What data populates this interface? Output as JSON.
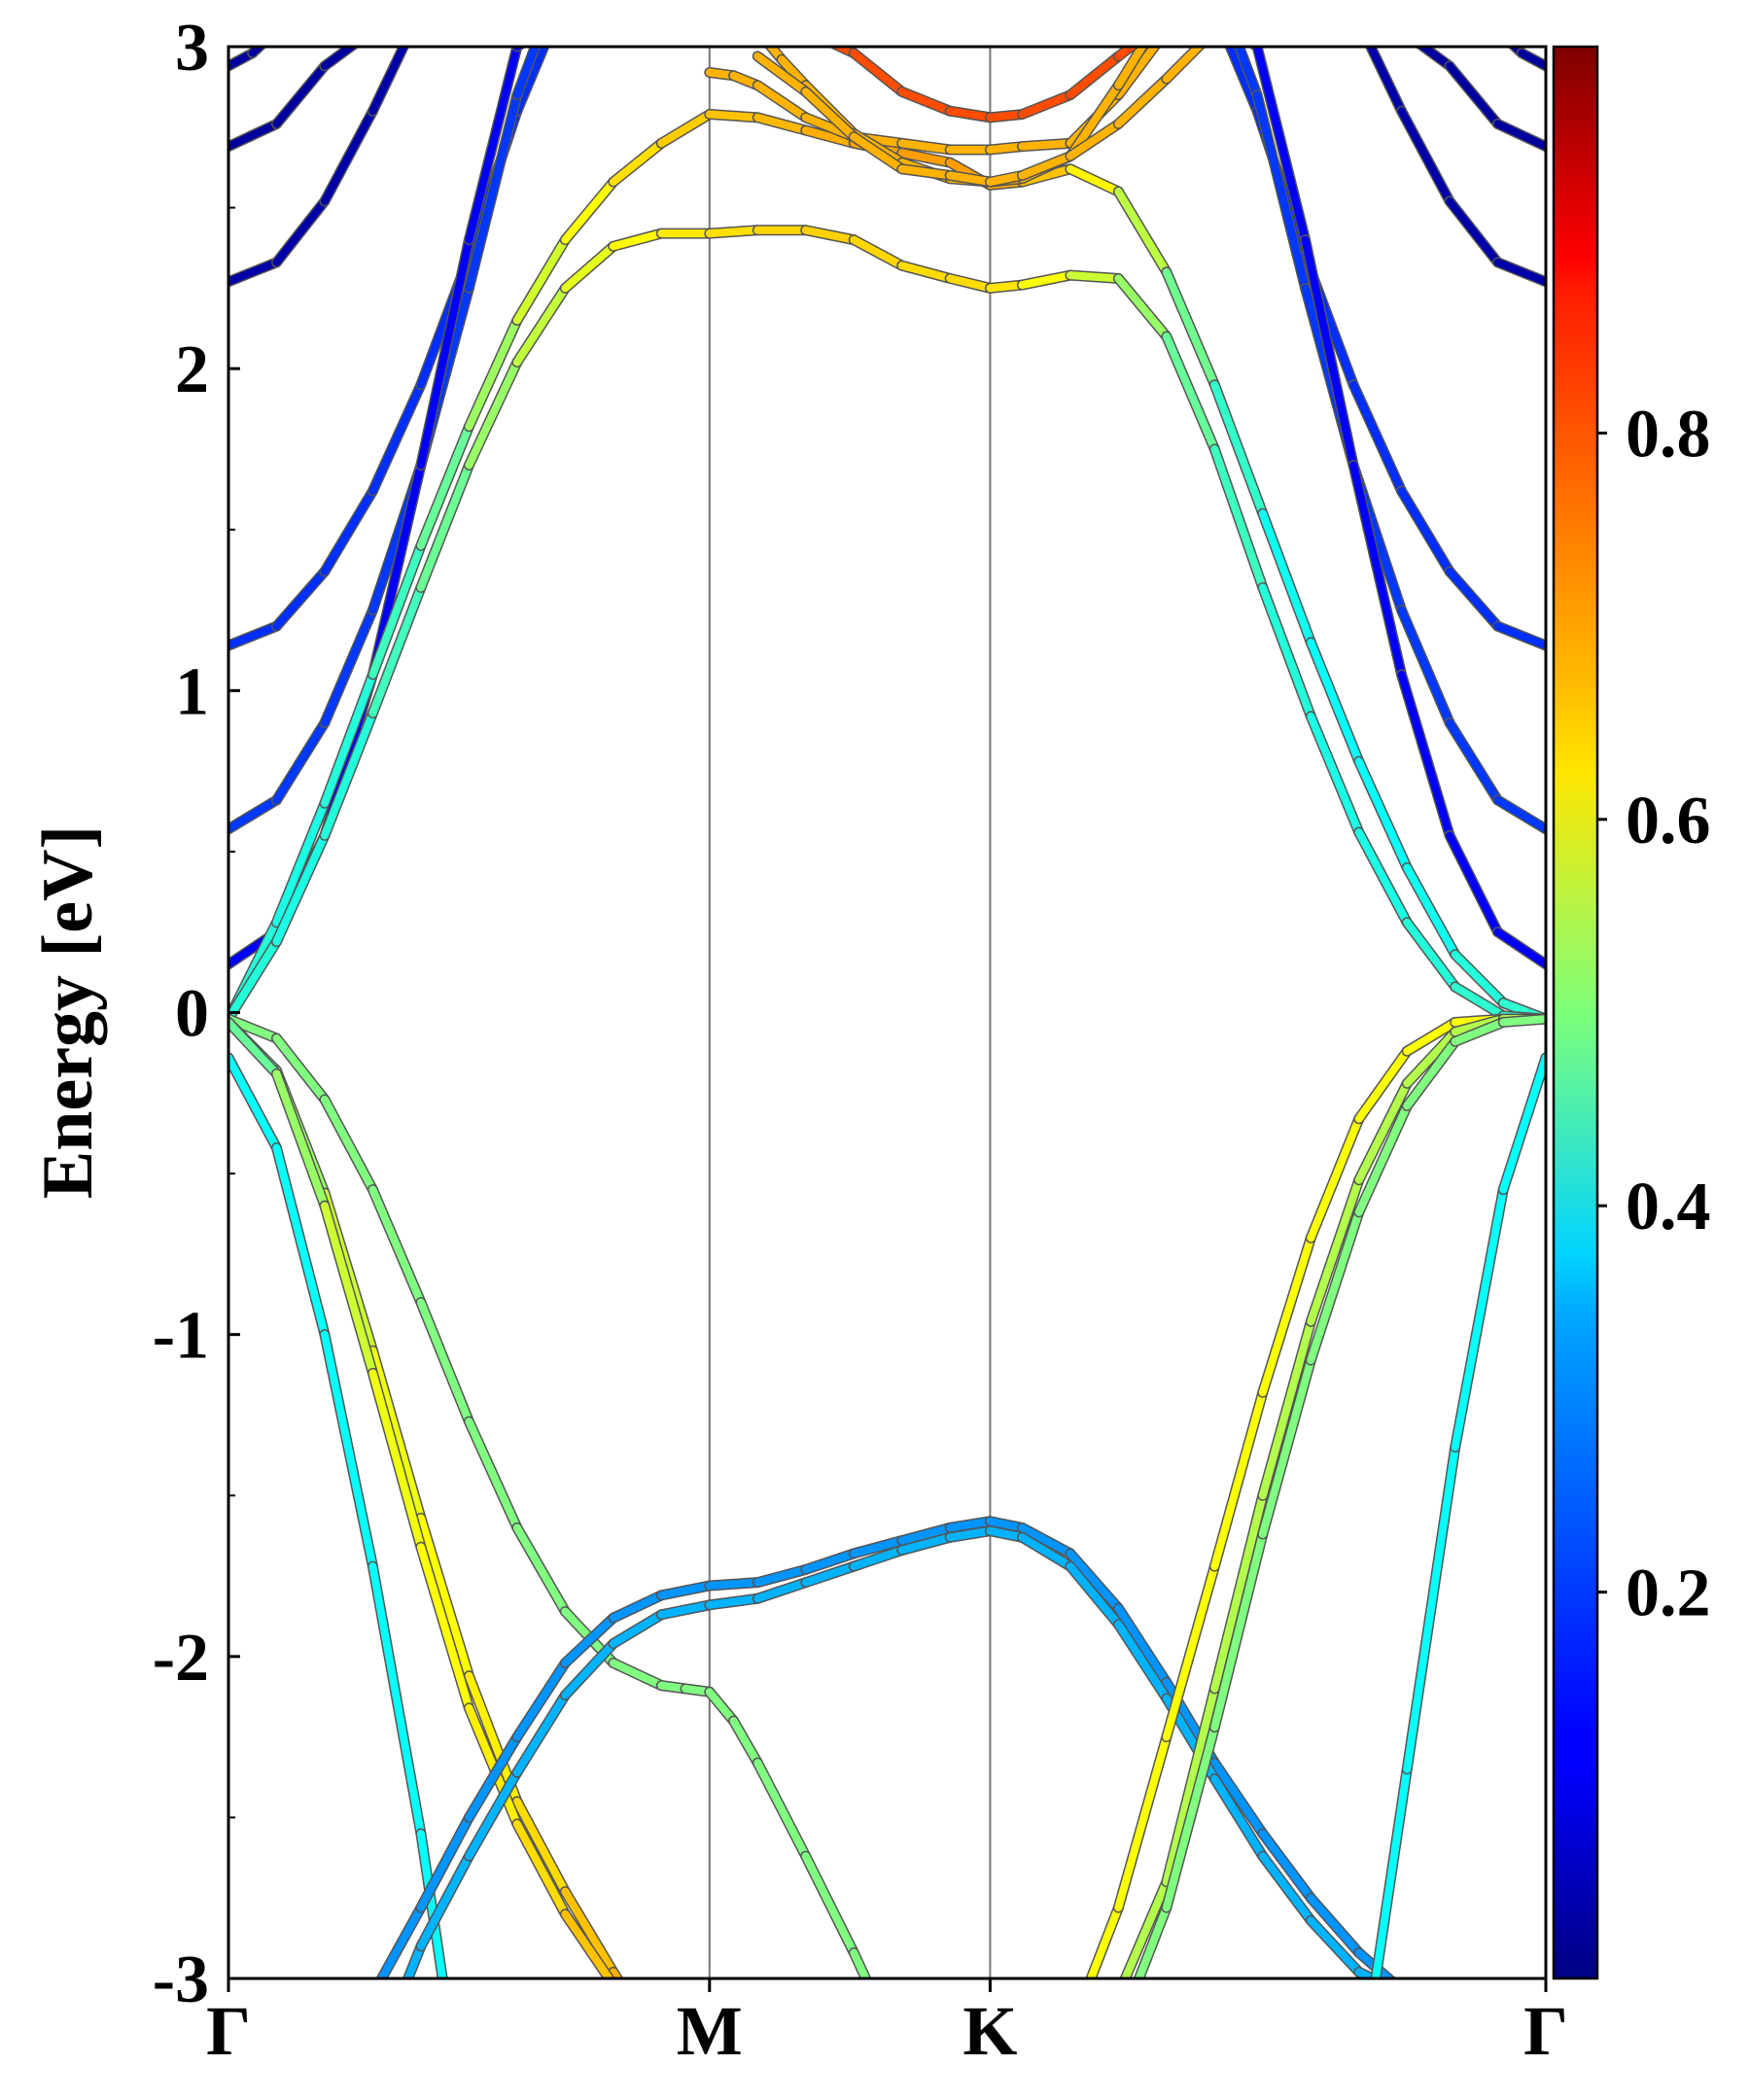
{
  "chart_data": {
    "type": "line",
    "title": "",
    "ylabel": "Energy [eV]",
    "xlabel": "",
    "ylim": [
      -3,
      3
    ],
    "yticks": [
      -3,
      -2,
      -1,
      0,
      1,
      2,
      3
    ],
    "ytick_labels": [
      "-3",
      "-2",
      "-1",
      "0",
      "1",
      "2",
      "3"
    ],
    "kpath_labels": [
      "Γ",
      "M",
      "K",
      "Γ"
    ],
    "kpath_positions": [
      0,
      1,
      1.5833,
      2.7385
    ],
    "colorbar": {
      "colormap": "jet",
      "range": [
        0,
        1
      ],
      "ticks": [
        0.2,
        0.4,
        0.6,
        0.8
      ],
      "tick_labels": [
        "0.2",
        "0.4",
        "0.6",
        "0.8"
      ]
    },
    "grid": false,
    "bands": [
      {
        "name": "cond-dark-1",
        "weight": 0.03,
        "x": [
          0,
          0.05,
          0.1,
          2.6385,
          2.6885,
          2.7385
        ],
        "y": [
          2.94,
          2.98,
          3.05,
          3.05,
          2.98,
          2.94
        ]
      },
      {
        "name": "cond-dark-2",
        "weight": 0.03,
        "x": [
          0,
          0.1,
          0.2,
          0.3,
          2.4385,
          2.5385,
          2.6385,
          2.7385
        ],
        "y": [
          2.69,
          2.76,
          2.94,
          3.05,
          3.05,
          2.94,
          2.76,
          2.69
        ]
      },
      {
        "name": "cond-dark-3",
        "weight": 0.04,
        "x": [
          0,
          0.1,
          0.2,
          0.3,
          0.38,
          2.3585,
          2.4385,
          2.5385,
          2.6385,
          2.7385
        ],
        "y": [
          2.27,
          2.33,
          2.52,
          2.8,
          3.05,
          3.05,
          2.8,
          2.52,
          2.33,
          2.27
        ]
      },
      {
        "name": "cond-blue-1",
        "weight": 0.17,
        "x": [
          0,
          0.1,
          0.2,
          0.3,
          0.4,
          0.5,
          0.6,
          0.67,
          2.0685,
          2.1385,
          2.2385,
          2.3385,
          2.4385,
          2.5385,
          2.6385,
          2.7385
        ],
        "y": [
          1.14,
          1.2,
          1.37,
          1.62,
          1.95,
          2.35,
          2.8,
          3.05,
          3.05,
          2.8,
          2.35,
          1.95,
          1.62,
          1.37,
          1.2,
          1.14
        ]
      },
      {
        "name": "cond-blue-2",
        "weight": 0.18,
        "x": [
          0,
          0.1,
          0.2,
          0.3,
          0.4,
          0.5,
          0.6,
          0.65,
          2.0885,
          2.1385,
          2.2385,
          2.3385,
          2.4385,
          2.5385,
          2.6385,
          2.7385
        ],
        "y": [
          0.57,
          0.66,
          0.9,
          1.25,
          1.7,
          2.25,
          2.85,
          3.05,
          3.05,
          2.85,
          2.25,
          1.7,
          1.25,
          0.9,
          0.66,
          0.57
        ]
      },
      {
        "name": "cond-blue-3",
        "weight": 0.12,
        "x": [
          0,
          0.1,
          0.2,
          0.3,
          0.4,
          0.5,
          0.6,
          0.65,
          2.0885,
          2.1385,
          2.2385,
          2.3385,
          2.4385,
          2.5385,
          2.6385,
          2.7385
        ],
        "y": [
          0.15,
          0.25,
          0.55,
          1.05,
          1.7,
          2.4,
          3.0,
          3.05,
          3.05,
          3.0,
          2.4,
          1.7,
          1.05,
          0.55,
          0.25,
          0.15
        ]
      },
      {
        "name": "cond-cone-1",
        "weight": 0.45,
        "x": [
          0,
          0.1,
          0.2,
          0.3,
          0.4,
          0.5,
          0.6,
          0.7,
          0.8,
          0.9,
          1.0,
          1.1,
          1.2,
          1.3,
          1.4,
          1.5,
          1.5833,
          1.65,
          1.75,
          1.85,
          1.95,
          2.05,
          2.15,
          2.25,
          2.35,
          2.45,
          2.55,
          2.65,
          2.7385
        ],
        "y": [
          -0.02,
          0.28,
          0.65,
          1.05,
          1.45,
          1.82,
          2.15,
          2.4,
          2.58,
          2.7,
          2.79,
          2.78,
          2.74,
          2.7,
          2.67,
          2.64,
          2.57,
          2.58,
          2.62,
          2.55,
          2.3,
          1.95,
          1.55,
          1.15,
          0.78,
          0.45,
          0.18,
          0.03,
          -0.02
        ],
        "weights": [
          0.42,
          0.4,
          0.4,
          0.42,
          0.45,
          0.5,
          0.56,
          0.6,
          0.64,
          0.67,
          0.68,
          0.69,
          0.7,
          0.71,
          0.72,
          0.72,
          0.72,
          0.7,
          0.67,
          0.6,
          0.52,
          0.45,
          0.4,
          0.38,
          0.38,
          0.38,
          0.4,
          0.42,
          0.42
        ]
      },
      {
        "name": "cond-cone-2",
        "weight": 0.55,
        "x": [
          0,
          0.1,
          0.2,
          0.3,
          0.4,
          0.5,
          0.6,
          0.7,
          0.8,
          0.9,
          1.0,
          1.1,
          1.2,
          1.3,
          1.4,
          1.5,
          1.5833,
          1.65,
          1.75,
          1.85,
          1.95,
          2.05,
          2.15,
          2.25,
          2.35,
          2.45,
          2.55,
          2.65,
          2.7385
        ],
        "y": [
          -0.02,
          0.22,
          0.55,
          0.93,
          1.32,
          1.7,
          2.02,
          2.25,
          2.38,
          2.42,
          2.42,
          2.43,
          2.43,
          2.4,
          2.32,
          2.28,
          2.25,
          2.26,
          2.29,
          2.28,
          2.1,
          1.75,
          1.32,
          0.92,
          0.56,
          0.28,
          0.08,
          -0.01,
          -0.02
        ],
        "weights": [
          0.42,
          0.4,
          0.4,
          0.42,
          0.46,
          0.5,
          0.55,
          0.58,
          0.62,
          0.64,
          0.65,
          0.66,
          0.67,
          0.67,
          0.66,
          0.66,
          0.66,
          0.64,
          0.6,
          0.55,
          0.5,
          0.45,
          0.42,
          0.4,
          0.4,
          0.4,
          0.42,
          0.42,
          0.42
        ]
      },
      {
        "name": "cond-orange-1",
        "weight": 0.7,
        "x": [
          1.0,
          1.05,
          1.1,
          1.2,
          1.3,
          1.4,
          1.5,
          1.5833,
          1.65,
          1.75,
          1.85,
          1.95
        ],
        "y": [
          2.92,
          2.91,
          2.88,
          2.78,
          2.72,
          2.7,
          2.68,
          2.68,
          2.69,
          2.7,
          2.85,
          3.05
        ]
      },
      {
        "name": "cond-orange-2",
        "weight": 0.7,
        "x": [
          1.1,
          1.15,
          1.2,
          1.3,
          1.4,
          1.5,
          1.5833,
          1.65,
          1.75,
          1.85,
          1.92
        ],
        "y": [
          3.05,
          2.96,
          2.88,
          2.73,
          2.64,
          2.59,
          2.58,
          2.59,
          2.66,
          2.88,
          3.05
        ]
      },
      {
        "name": "cond-orange-3",
        "weight": 0.8,
        "x": [
          1.2,
          1.3,
          1.4,
          1.5,
          1.5833,
          1.65,
          1.75,
          1.85,
          1.92
        ],
        "y": [
          3.05,
          2.98,
          2.86,
          2.8,
          2.78,
          2.79,
          2.85,
          2.97,
          3.05
        ]
      },
      {
        "name": "cond-orange-4",
        "weight": 0.7,
        "x": [
          1.1,
          1.2,
          1.3,
          1.4,
          1.5,
          1.5833,
          1.65,
          1.75,
          1.85,
          1.95,
          2.05
        ],
        "y": [
          2.97,
          2.86,
          2.72,
          2.62,
          2.6,
          2.58,
          2.6,
          2.66,
          2.76,
          2.9,
          3.05
        ]
      },
      {
        "name": "val-1",
        "weight": 0.5,
        "x": [
          0,
          0.1,
          0.2,
          0.3,
          0.4,
          0.5,
          0.6,
          0.7,
          0.8,
          0.9,
          0.95,
          1.0,
          1.05,
          1.1,
          1.2,
          1.3,
          1.34
        ],
        "y": [
          -0.02,
          -0.08,
          -0.27,
          -0.55,
          -0.9,
          -1.27,
          -1.6,
          -1.86,
          -2.02,
          -2.09,
          -2.1,
          -2.11,
          -2.2,
          -2.33,
          -2.62,
          -2.92,
          -3.05
        ]
      },
      {
        "name": "val-2",
        "weight": 0.6,
        "x": [
          0,
          0.1,
          0.2,
          0.3,
          0.4,
          0.5,
          0.6,
          0.7,
          0.8,
          0.83
        ],
        "y": [
          -0.03,
          -0.18,
          -0.56,
          -1.05,
          -1.57,
          -2.06,
          -2.45,
          -2.73,
          -2.98,
          -3.05
        ],
        "weights": [
          0.45,
          0.5,
          0.55,
          0.6,
          0.62,
          0.63,
          0.65,
          0.67,
          0.7,
          0.7
        ]
      },
      {
        "name": "val-3",
        "weight": 0.58,
        "x": [
          0,
          0.1,
          0.2,
          0.3,
          0.4,
          0.5,
          0.6,
          0.7,
          0.8,
          0.85
        ],
        "y": [
          -0.03,
          -0.19,
          -0.6,
          -1.12,
          -1.66,
          -2.16,
          -2.52,
          -2.8,
          -3.02,
          -3.05
        ],
        "weights": [
          0.45,
          0.5,
          0.55,
          0.6,
          0.62,
          0.63,
          0.65,
          0.67,
          0.7,
          0.7
        ]
      },
      {
        "name": "val-4",
        "weight": 0.38,
        "x": [
          0,
          0.1,
          0.2,
          0.3,
          0.4,
          0.45
        ],
        "y": [
          -0.14,
          -0.42,
          -1.0,
          -1.72,
          -2.55,
          -3.05
        ]
      },
      {
        "name": "val-5",
        "weight": 0.27,
        "x": [
          0.3,
          0.4,
          0.5,
          0.6,
          0.7,
          0.8,
          0.9,
          1.0,
          1.1,
          1.2,
          1.3,
          1.4,
          1.5,
          1.5833,
          1.65,
          1.75,
          1.85,
          1.95,
          2.05,
          2.15,
          2.25,
          2.35,
          2.45,
          2.52
        ],
        "y": [
          -3.05,
          -2.78,
          -2.5,
          -2.25,
          -2.02,
          -1.88,
          -1.81,
          -1.78,
          -1.77,
          -1.73,
          -1.68,
          -1.64,
          -1.6,
          -1.58,
          -1.6,
          -1.68,
          -1.85,
          -2.08,
          -2.33,
          -2.55,
          -2.75,
          -2.92,
          -3.05,
          -3.05
        ]
      },
      {
        "name": "val-6",
        "weight": 0.3,
        "x": [
          0.36,
          0.4,
          0.5,
          0.6,
          0.7,
          0.8,
          0.9,
          1.0,
          1.1,
          1.2,
          1.3,
          1.4,
          1.5,
          1.5833,
          1.65,
          1.75,
          1.85,
          1.95,
          2.05,
          2.15,
          2.25,
          2.35,
          2.45,
          2.5
        ],
        "y": [
          -3.05,
          -2.9,
          -2.62,
          -2.36,
          -2.12,
          -1.96,
          -1.87,
          -1.84,
          -1.82,
          -1.77,
          -1.72,
          -1.67,
          -1.63,
          -1.61,
          -1.63,
          -1.72,
          -1.9,
          -2.13,
          -2.38,
          -2.62,
          -2.82,
          -2.98,
          -3.05,
          -3.05
        ]
      },
      {
        "name": "val-7",
        "weight": 0.62,
        "x": [
          1.78,
          1.85,
          1.95,
          2.05,
          2.15,
          2.25,
          2.35,
          2.45,
          2.55,
          2.65,
          2.7385
        ],
        "y": [
          -3.05,
          -2.78,
          -2.25,
          -1.72,
          -1.18,
          -0.7,
          -0.33,
          -0.12,
          -0.03,
          -0.02,
          -0.02
        ]
      },
      {
        "name": "val-8",
        "weight": 0.55,
        "x": [
          1.85,
          1.95,
          2.05,
          2.15,
          2.25,
          2.35,
          2.45,
          2.55,
          2.65,
          2.7385
        ],
        "y": [
          -3.05,
          -2.7,
          -2.1,
          -1.5,
          -0.96,
          -0.52,
          -0.22,
          -0.06,
          -0.02,
          -0.02
        ]
      },
      {
        "name": "val-9",
        "weight": 0.5,
        "x": [
          1.88,
          1.95,
          2.05,
          2.15,
          2.25,
          2.35,
          2.45,
          2.55,
          2.65,
          2.7385
        ],
        "y": [
          -3.05,
          -2.78,
          -2.22,
          -1.62,
          -1.08,
          -0.62,
          -0.29,
          -0.09,
          -0.03,
          -0.02
        ]
      },
      {
        "name": "val-10",
        "weight": 0.38,
        "x": [
          2.38,
          2.45,
          2.55,
          2.65,
          2.7385
        ],
        "y": [
          -3.05,
          -2.35,
          -1.35,
          -0.55,
          -0.14
        ]
      }
    ]
  }
}
